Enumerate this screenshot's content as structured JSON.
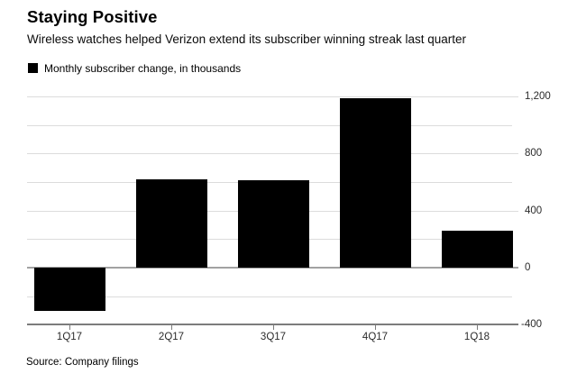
{
  "header": {
    "title": "Staying Positive",
    "subtitle": "Wireless watches helped Verizon extend its subscriber winning streak last quarter"
  },
  "legend": {
    "label": "Monthly subscriber change, in thousands",
    "swatch_color": "#000000"
  },
  "source": "Source: Company filings",
  "colors": {
    "bar": "#000000",
    "gridline": "#dcdcdc",
    "zero_line": "#a2a2a2",
    "axis_line": "#7c7c7c",
    "tick_label": "#2b2b2b"
  },
  "chart_data": {
    "type": "bar",
    "title": "Staying Positive",
    "subtitle": "Wireless watches helped Verizon extend its subscriber winning streak last quarter",
    "legend_entries": [
      "Monthly subscriber change, in thousands"
    ],
    "legend_position": "top-left",
    "categories": [
      "1Q17",
      "2Q17",
      "3Q17",
      "4Q17",
      "1Q18"
    ],
    "values": [
      -305,
      620,
      610,
      1190,
      260
    ],
    "units": "thousands of subscribers",
    "xlabel": "",
    "ylabel": "",
    "ylim": [
      -400,
      1300
    ],
    "y_axis_side": "right",
    "grid": true,
    "gridline_step": 200,
    "major_ticks": [
      1200,
      800,
      400,
      0,
      -400
    ],
    "major_tick_labels": [
      "1,200",
      "800",
      "400",
      "0",
      "-400"
    ],
    "minor_gridlines": [
      1000,
      600,
      200,
      -200
    ],
    "baseline_value": -400,
    "source": "Source: Company filings"
  }
}
